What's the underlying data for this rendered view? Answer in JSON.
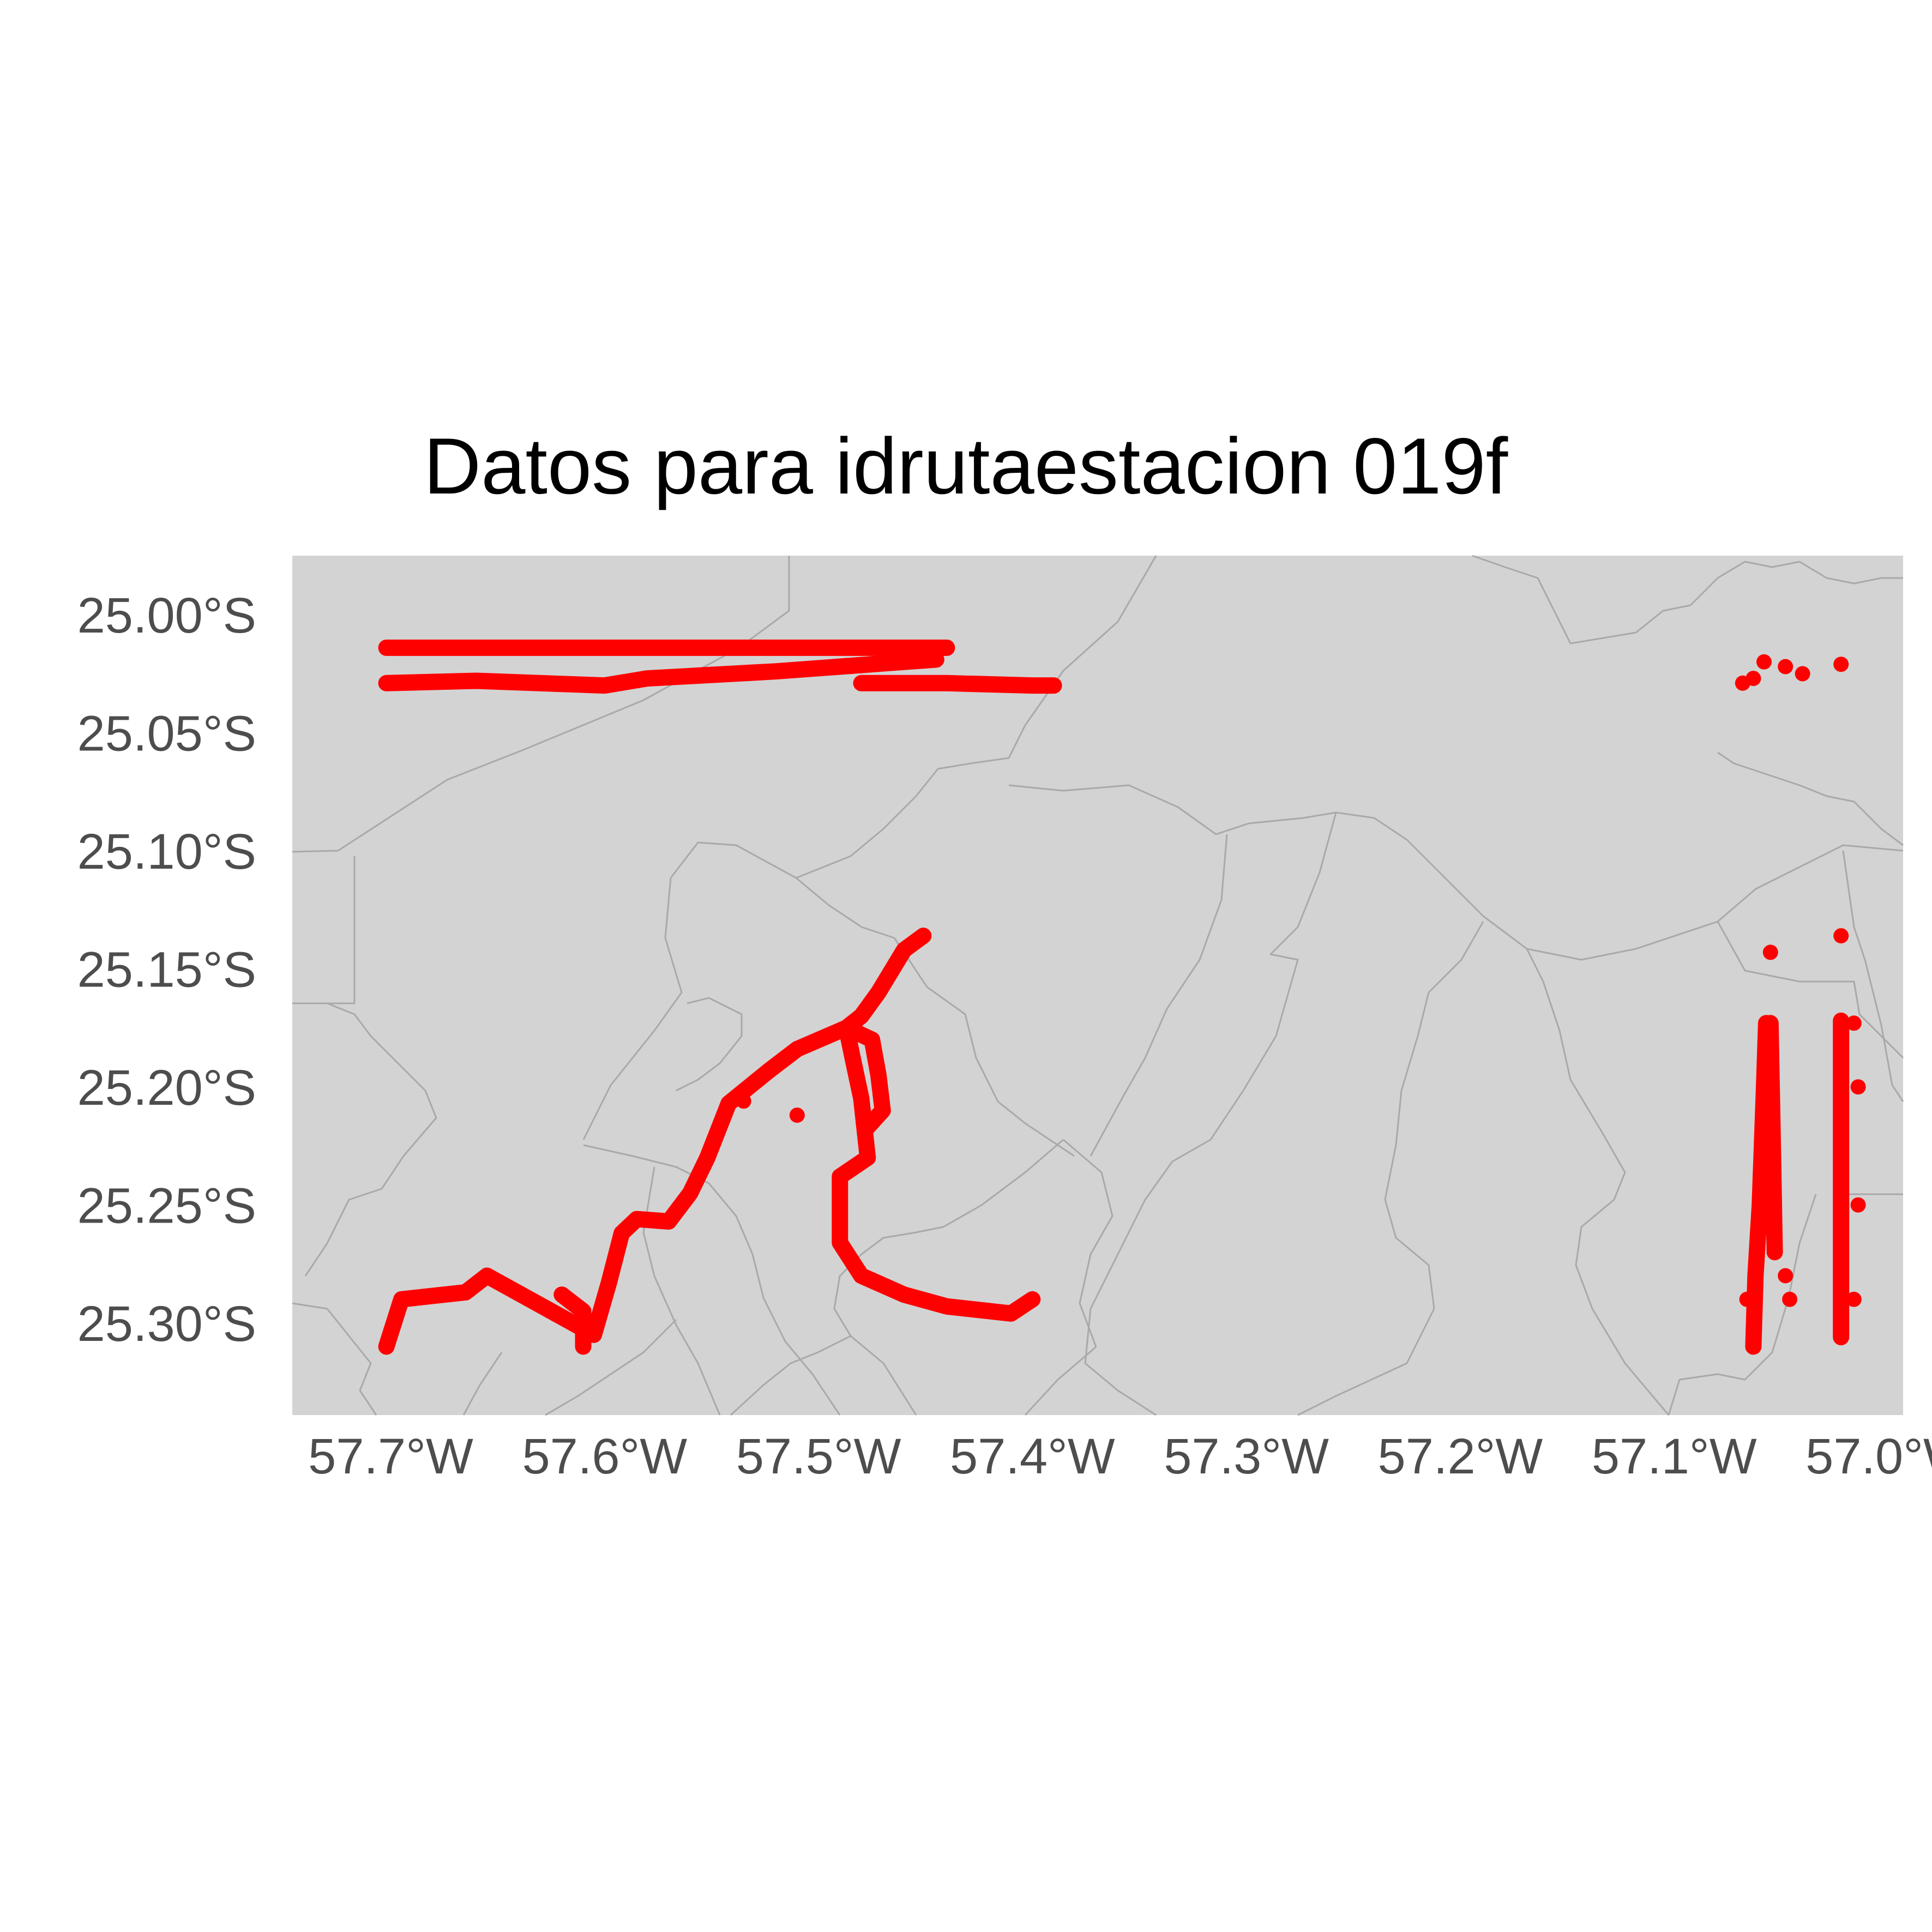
{
  "title": "Datos para idrutaestacion 019f",
  "x_axis": {
    "ticks": [
      {
        "value": -57.7,
        "label": "57.7°W"
      },
      {
        "value": -57.6,
        "label": "57.6°W"
      },
      {
        "value": -57.5,
        "label": "57.5°W"
      },
      {
        "value": -57.4,
        "label": "57.4°W"
      },
      {
        "value": -57.3,
        "label": "57.3°W"
      },
      {
        "value": -57.2,
        "label": "57.2°W"
      },
      {
        "value": -57.1,
        "label": "57.1°W"
      },
      {
        "value": -57.0,
        "label": "57.0°W"
      }
    ]
  },
  "y_axis": {
    "ticks": [
      {
        "value": -25.0,
        "label": "25.00°S"
      },
      {
        "value": -25.05,
        "label": "25.05°S"
      },
      {
        "value": -25.1,
        "label": "25.10°S"
      },
      {
        "value": -25.15,
        "label": "25.15°S"
      },
      {
        "value": -25.2,
        "label": "25.20°S"
      },
      {
        "value": -25.25,
        "label": "25.25°S"
      },
      {
        "value": -25.3,
        "label": "25.30°S"
      }
    ]
  },
  "chart_data": {
    "type": "scatter",
    "title": "Datos para idrutaestacion 019f",
    "xlim": [
      -57.746,
      -56.993
    ],
    "ylim": [
      -25.339,
      -24.975
    ],
    "grid": false,
    "legend": "none",
    "background_color": "#d3d3d3",
    "boundary_color": "#a9a9a9",
    "point_color": "#ff0000",
    "tracks": [
      {
        "kind": "line",
        "points": [
          [
            -57.702,
            -25.014
          ],
          [
            -57.66,
            -25.014
          ],
          [
            -57.6,
            -25.014
          ],
          [
            -57.5,
            -25.014
          ],
          [
            -57.44,
            -25.014
          ]
        ]
      },
      {
        "kind": "line",
        "points": [
          [
            -57.702,
            -25.029
          ],
          [
            -57.66,
            -25.028
          ],
          [
            -57.6,
            -25.03
          ],
          [
            -57.58,
            -25.027
          ],
          [
            -57.56,
            -25.026
          ],
          [
            -57.52,
            -25.024
          ],
          [
            -57.49,
            -25.022
          ],
          [
            -57.46,
            -25.02
          ],
          [
            -57.445,
            -25.019
          ]
        ]
      },
      {
        "kind": "line",
        "points": [
          [
            -57.48,
            -25.029
          ],
          [
            -57.44,
            -25.029
          ],
          [
            -57.4,
            -25.03
          ],
          [
            -57.39,
            -25.03
          ]
        ]
      },
      {
        "kind": "line",
        "points": [
          [
            -57.451,
            -25.136
          ],
          [
            -57.46,
            -25.142
          ],
          [
            -57.472,
            -25.16
          ],
          [
            -57.48,
            -25.17
          ],
          [
            -57.487,
            -25.175
          ],
          [
            -57.51,
            -25.184
          ],
          [
            -57.523,
            -25.193
          ],
          [
            -57.542,
            -25.207
          ],
          [
            -57.552,
            -25.23
          ],
          [
            -57.56,
            -25.245
          ],
          [
            -57.57,
            -25.257
          ],
          [
            -57.585,
            -25.256
          ],
          [
            -57.592,
            -25.262
          ],
          [
            -57.598,
            -25.283
          ],
          [
            -57.605,
            -25.305
          ],
          [
            -57.615,
            -25.3
          ],
          [
            -57.635,
            -25.29
          ],
          [
            -57.655,
            -25.28
          ],
          [
            -57.665,
            -25.287
          ],
          [
            -57.695,
            -25.29
          ],
          [
            -57.702,
            -25.31
          ]
        ]
      },
      {
        "kind": "line",
        "points": [
          [
            -57.487,
            -25.175
          ],
          [
            -57.484,
            -25.188
          ],
          [
            -57.48,
            -25.205
          ],
          [
            -57.477,
            -25.23
          ],
          [
            -57.49,
            -25.238
          ],
          [
            -57.49,
            -25.266
          ],
          [
            -57.48,
            -25.28
          ],
          [
            -57.46,
            -25.288
          ],
          [
            -57.44,
            -25.293
          ],
          [
            -57.41,
            -25.296
          ],
          [
            -57.4,
            -25.29
          ]
        ]
      },
      {
        "kind": "line",
        "points": [
          [
            -57.487,
            -25.175
          ],
          [
            -57.475,
            -25.18
          ],
          [
            -57.472,
            -25.195
          ],
          [
            -57.47,
            -25.21
          ],
          [
            -57.478,
            -25.218
          ]
        ]
      },
      {
        "kind": "line",
        "points": [
          [
            -57.62,
            -25.288
          ],
          [
            -57.61,
            -25.295
          ],
          [
            -57.61,
            -25.31
          ]
        ]
      },
      {
        "kind": "line",
        "points": [
          [
            -57.057,
            -25.173
          ],
          [
            -57.058,
            -25.2
          ],
          [
            -57.06,
            -25.25
          ],
          [
            -57.062,
            -25.28
          ],
          [
            -57.063,
            -25.31
          ]
        ]
      },
      {
        "kind": "line",
        "points": [
          [
            -57.055,
            -25.173
          ],
          [
            -57.054,
            -25.22
          ],
          [
            -57.053,
            -25.27
          ]
        ]
      },
      {
        "kind": "line",
        "points": [
          [
            -57.022,
            -25.172
          ],
          [
            -57.022,
            -25.22
          ],
          [
            -57.022,
            -25.27
          ],
          [
            -57.022,
            -25.306
          ]
        ]
      }
    ],
    "points": [
      [
        -57.04,
        -25.025
      ],
      [
        -57.048,
        -25.022
      ],
      [
        -57.058,
        -25.02
      ],
      [
        -57.063,
        -25.027
      ],
      [
        -57.068,
        -25.029
      ],
      [
        -57.022,
        -25.021
      ],
      [
        -57.022,
        -25.136
      ],
      [
        -57.055,
        -25.143
      ],
      [
        -57.535,
        -25.206
      ],
      [
        -57.51,
        -25.212
      ],
      [
        -57.048,
        -25.28
      ],
      [
        -57.046,
        -25.29
      ],
      [
        -57.016,
        -25.173
      ],
      [
        -57.014,
        -25.2
      ],
      [
        -57.014,
        -25.25
      ],
      [
        -57.016,
        -25.29
      ],
      [
        -57.066,
        -25.29
      ]
    ]
  }
}
